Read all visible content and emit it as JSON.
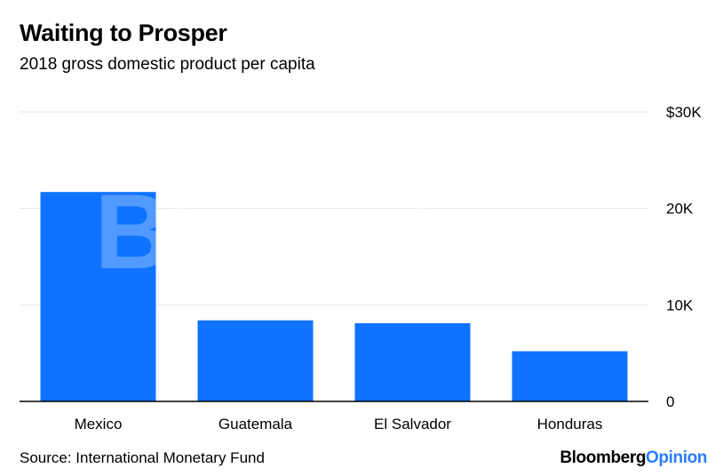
{
  "header": {
    "title": "Waiting to Prosper",
    "subtitle": "2018 gross domestic product per capita"
  },
  "footer": {
    "source": "Source: International Monetary Fund",
    "logo_brand": "Bloomberg",
    "logo_suffix": "Opinion"
  },
  "watermark": "Bloomberg",
  "colors": {
    "bar": "#0f73ff",
    "grid": "#e6e6e6",
    "axis": "#000000",
    "watermark": "#ffffff",
    "logo_accent": "#2b7dff"
  },
  "chart_data": {
    "type": "bar",
    "categories": [
      "Mexico",
      "Guatemala",
      "El Salvador",
      "Honduras"
    ],
    "values": [
      21700,
      8400,
      8100,
      5200
    ],
    "title": "Waiting to Prosper",
    "subtitle": "2018 gross domestic product per capita",
    "xlabel": "",
    "ylabel": "",
    "ylim": [
      0,
      30000
    ],
    "yticks": [
      0,
      10000,
      20000,
      30000
    ],
    "ytick_labels": [
      "0",
      "10K",
      "20K",
      "$30K"
    ],
    "y_axis_side": "right",
    "grid": true,
    "legend": "none"
  }
}
